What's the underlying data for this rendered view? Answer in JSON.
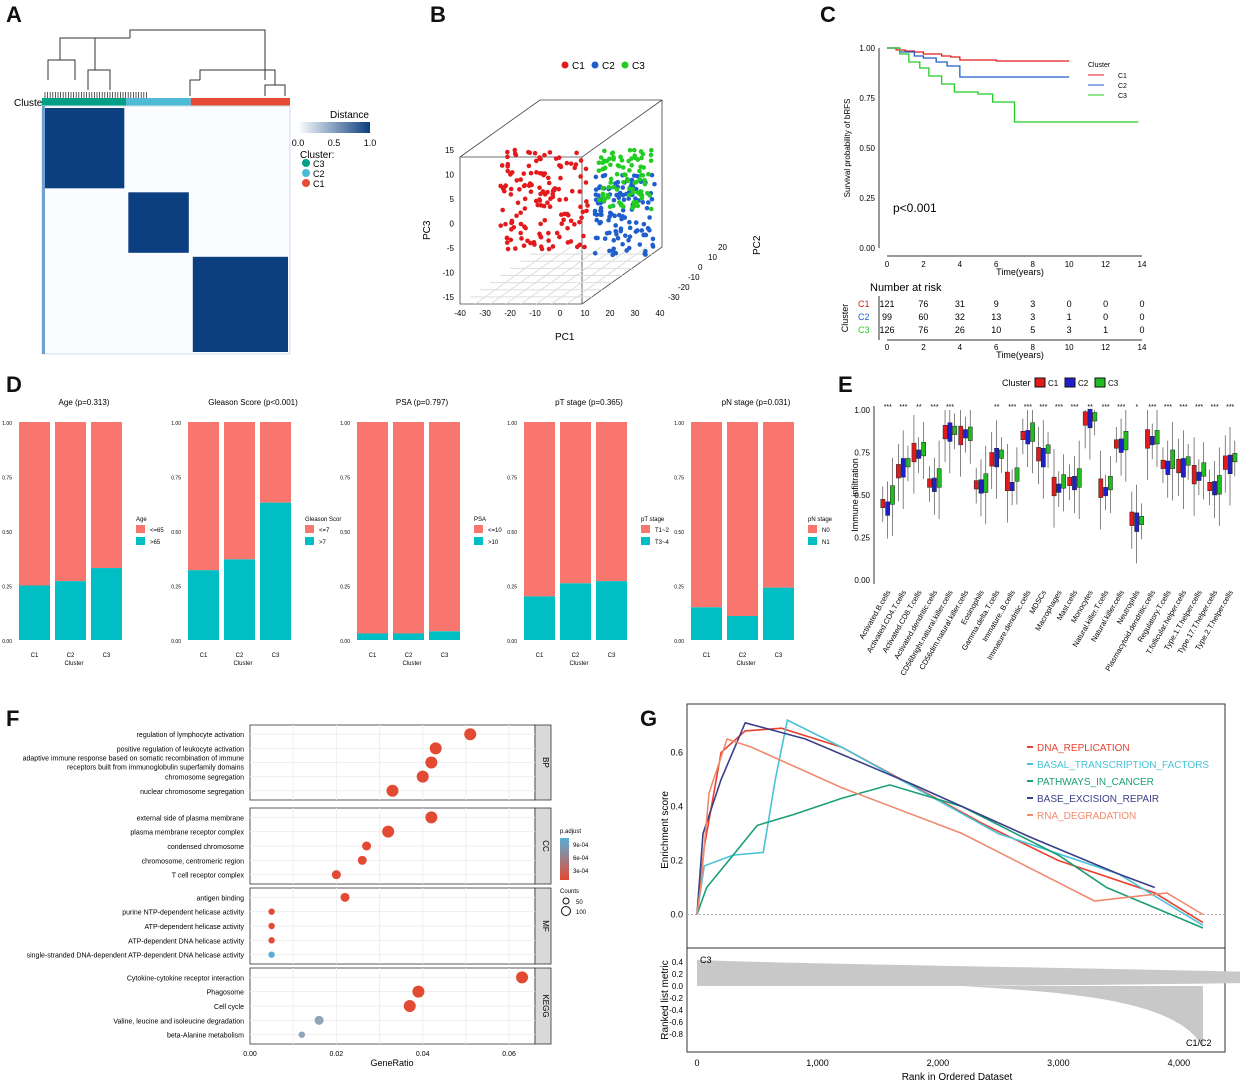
{
  "panels": {
    "A": "A",
    "B": "B",
    "C": "C",
    "D": "D",
    "E": "E",
    "F": "F",
    "G": "G"
  },
  "colors": {
    "C1": "#e64b35",
    "C2": "#4dbbd5",
    "C3": "#00a087",
    "red": "#e31a1c",
    "blue": "#1f5ecc",
    "green": "#22cc22",
    "navy": "#08306b"
  },
  "chart_data": [
    {
      "id": "A",
      "type": "heatmap",
      "row_label": "Cluster",
      "legend": {
        "title": "Distance",
        "ticks": [
          "0.0",
          "0.5",
          "1.0"
        ],
        "cluster_title": "Cluster:",
        "clusters": [
          "C3",
          "C2",
          "C1"
        ]
      },
      "blocks": [
        {
          "cluster": "C3",
          "fraction": 0.34
        },
        {
          "cluster": "C2",
          "fraction": 0.26
        },
        {
          "cluster": "C1",
          "fraction": 0.4
        }
      ]
    },
    {
      "id": "B",
      "type": "scatter",
      "legend": [
        "C1",
        "C2",
        "C3"
      ],
      "xlabel": "PC1",
      "ylabel": "PC3",
      "zlabel": "PC2",
      "xticks": [
        "-40",
        "-30",
        "-20",
        "-10",
        "0",
        "10",
        "20",
        "30",
        "40"
      ],
      "yticks": [
        "-15",
        "-10",
        "-5",
        "0",
        "5",
        "10",
        "15"
      ],
      "zticks": [
        "-30",
        "-20",
        "-10",
        "0",
        "10",
        "20"
      ]
    },
    {
      "id": "C",
      "type": "line",
      "title": "",
      "ylabel": "Survival probability of bRFS",
      "xlabel": "Time(years)",
      "xticks": [
        "0",
        "2",
        "4",
        "6",
        "8",
        "10",
        "12",
        "14"
      ],
      "yticks": [
        "0.00",
        "0.25",
        "0.50",
        "0.75",
        "1.00"
      ],
      "pvalue": "p<0.001",
      "legend_title": "Cluster",
      "series": [
        {
          "name": "C1",
          "x": [
            0,
            0.5,
            1,
            1.5,
            2,
            3,
            3.5,
            4,
            5,
            6,
            7,
            8,
            9,
            10
          ],
          "y": [
            1.0,
            0.99,
            0.985,
            0.98,
            0.97,
            0.96,
            0.955,
            0.94,
            0.94,
            0.935,
            0.935,
            0.935,
            0.935,
            0.935
          ]
        },
        {
          "name": "C2",
          "x": [
            0,
            0.7,
            1.5,
            2,
            2.7,
            3.3,
            4,
            5,
            6,
            7,
            8,
            9,
            10
          ],
          "y": [
            1.0,
            0.98,
            0.96,
            0.95,
            0.93,
            0.91,
            0.855,
            0.855,
            0.855,
            0.855,
            0.855,
            0.855,
            0.855
          ]
        },
        {
          "name": "C3",
          "x": [
            0,
            0.7,
            1.2,
            1.8,
            2.3,
            3,
            3.7,
            5,
            5.8,
            7,
            8,
            10,
            12,
            13.8
          ],
          "y": [
            1.0,
            0.97,
            0.93,
            0.9,
            0.86,
            0.82,
            0.78,
            0.77,
            0.73,
            0.63,
            0.63,
            0.63,
            0.63,
            0.63
          ]
        }
      ],
      "risk_table": {
        "title": "Number at risk",
        "ylabel": "Cluster",
        "xlabel": "Time(years)",
        "rows": [
          {
            "name": "C1",
            "values": [
              "121",
              "76",
              "31",
              "9",
              "3",
              "0",
              "0",
              "0"
            ]
          },
          {
            "name": "C2",
            "values": [
              "99",
              "60",
              "32",
              "13",
              "3",
              "1",
              "0",
              "0"
            ]
          },
          {
            "name": "C3",
            "values": [
              "126",
              "76",
              "26",
              "10",
              "5",
              "3",
              "1",
              "0"
            ]
          }
        ]
      }
    },
    {
      "id": "D",
      "type": "bar",
      "stacked": true,
      "categories": [
        "C1",
        "C2",
        "C3"
      ],
      "xlabel": "Cluster",
      "yticks": [
        "0.00",
        "0.25",
        "0.50",
        "0.75",
        "1.00"
      ],
      "plots": [
        {
          "title": "Age (p=0.313)",
          "legend_title": "Age",
          "labels": [
            "<=65",
            ">65"
          ],
          "bottom": [
            0.25,
            0.27,
            0.33
          ]
        },
        {
          "title": "Gleason Score (p<0.001)",
          "legend_title": "Gleason Scor",
          "labels": [
            "<=7",
            ">7"
          ],
          "bottom": [
            0.32,
            0.37,
            0.63
          ]
        },
        {
          "title": "PSA (p=0.797)",
          "legend_title": "PSA",
          "labels": [
            "<=10",
            ">10"
          ],
          "bottom": [
            0.03,
            0.03,
            0.04
          ]
        },
        {
          "title": "pT stage (p=0.365)",
          "legend_title": "pT stage",
          "labels": [
            "T1~2",
            "T3~4"
          ],
          "bottom": [
            0.2,
            0.26,
            0.27
          ]
        },
        {
          "title": "pN stage (p=0.031)",
          "legend_title": "pN stage",
          "labels": [
            "N0",
            "N1"
          ],
          "bottom": [
            0.15,
            0.11,
            0.24
          ]
        }
      ]
    },
    {
      "id": "E",
      "type": "box",
      "ylabel": "Immune infiltration",
      "legend_title": "Cluster",
      "legend": [
        "C1",
        "C2",
        "C3"
      ],
      "yticks": [
        "0.00",
        "0.25",
        "0.50",
        "0.75",
        "1.00"
      ],
      "cells": [
        {
          "name": "Activated.B.cells",
          "sig": "***",
          "med": [
            0.45,
            0.42,
            0.5
          ]
        },
        {
          "name": "Activated.CD4.T.cells",
          "sig": "***",
          "med": [
            0.64,
            0.66,
            0.69
          ]
        },
        {
          "name": "Activated.CD8.T.cells",
          "sig": "**",
          "med": [
            0.75,
            0.74,
            0.77
          ]
        },
        {
          "name": "Activated.dendritic.cells",
          "sig": "***",
          "med": [
            0.57,
            0.56,
            0.6
          ]
        },
        {
          "name": "CD56bright.natural.killer.cells",
          "sig": "***",
          "med": [
            0.87,
            0.87,
            0.88
          ]
        },
        {
          "name": "CD56dim.natural.killer.cells",
          "sig": "",
          "med": [
            0.85,
            0.86,
            0.86
          ]
        },
        {
          "name": "Eosinophils",
          "sig": "",
          "med": [
            0.56,
            0.55,
            0.57
          ]
        },
        {
          "name": "Gamma.delta.T.cells",
          "sig": "**",
          "med": [
            0.71,
            0.72,
            0.74
          ]
        },
        {
          "name": "Immature..B.cells",
          "sig": "***",
          "med": [
            0.58,
            0.55,
            0.62
          ]
        },
        {
          "name": "Immature.dendritic.cells",
          "sig": "***",
          "med": [
            0.85,
            0.84,
            0.87
          ]
        },
        {
          "name": "MDSCs",
          "sig": "***",
          "med": [
            0.74,
            0.72,
            0.77
          ]
        },
        {
          "name": "Macrophages",
          "sig": "***",
          "med": [
            0.55,
            0.54,
            0.58
          ]
        },
        {
          "name": "Mast.cells",
          "sig": "***",
          "med": [
            0.58,
            0.57,
            0.6
          ]
        },
        {
          "name": "Monocytes",
          "sig": "**",
          "med": [
            0.95,
            0.95,
            0.96
          ]
        },
        {
          "name": "Natural.killer.T.cells",
          "sig": "***",
          "med": [
            0.54,
            0.52,
            0.57
          ]
        },
        {
          "name": "Natural.killer.cells",
          "sig": "***",
          "med": [
            0.8,
            0.79,
            0.82
          ]
        },
        {
          "name": "Neutrophils",
          "sig": "*",
          "med": [
            0.36,
            0.34,
            0.35
          ]
        },
        {
          "name": "Plasmacytoid.dendritic.cells",
          "sig": "***",
          "med": [
            0.83,
            0.82,
            0.84
          ]
        },
        {
          "name": "Regulatory.T.cells",
          "sig": "***",
          "med": [
            0.68,
            0.66,
            0.71
          ]
        },
        {
          "name": "T.follicular.helper.cells",
          "sig": "***",
          "med": [
            0.67,
            0.66,
            0.7
          ]
        },
        {
          "name": "Type.1.T.helper.cells",
          "sig": "***",
          "med": [
            0.62,
            0.61,
            0.65
          ]
        },
        {
          "name": "Type.17.T.helper.cells",
          "sig": "***",
          "med": [
            0.55,
            0.54,
            0.56
          ]
        },
        {
          "name": "Type.2.T.helper.cells",
          "sig": "***",
          "med": [
            0.69,
            0.68,
            0.72
          ]
        }
      ]
    },
    {
      "id": "F",
      "type": "scatter",
      "xlabel": "GeneRatio",
      "xticks": [
        "0.00",
        "0.02",
        "0.04",
        "0.06"
      ],
      "xlim": [
        0,
        0.066
      ],
      "color_legend": {
        "title": "p.adjust",
        "ticks": [
          "9e-04",
          "6e-04",
          "3e-04"
        ]
      },
      "size_legend": {
        "title": "Counts",
        "ticks": [
          "50",
          "100"
        ]
      },
      "groups": [
        {
          "name": "BP",
          "terms": [
            {
              "label": "regulation of lymphocyte activation",
              "x": 0.051,
              "p": 0.0001
            },
            {
              "label": "positive regulation of leukocyte activation",
              "x": 0.043,
              "p": 0.0001
            },
            {
              "label": "adaptive immune response based on somatic recombination of immune",
              "label2": "receptors built from immunoglobulin superfamily domains",
              "x": 0.042,
              "p": 0.0001
            },
            {
              "label": "chromosome segregation",
              "x": 0.04,
              "p": 0.0001
            },
            {
              "label": "nuclear chromosome segregation",
              "x": 0.033,
              "p": 0.0001
            }
          ]
        },
        {
          "name": "CC",
          "terms": [
            {
              "label": "external side of plasma membrane",
              "x": 0.042,
              "p": 0.0001
            },
            {
              "label": "plasma membrane receptor complex",
              "x": 0.032,
              "p": 0.0001
            },
            {
              "label": "condensed chromosome",
              "x": 0.027,
              "p": 0.0001
            },
            {
              "label": "chromosome, centromeric region",
              "x": 0.026,
              "p": 0.0001
            },
            {
              "label": "T cell receptor complex",
              "x": 0.02,
              "p": 0.0001
            }
          ]
        },
        {
          "name": "MF",
          "terms": [
            {
              "label": "antigen binding",
              "x": 0.022,
              "p": 0.0001
            },
            {
              "label": "purine NTP-dependent helicase activity",
              "x": 0.005,
              "p": 0.0002
            },
            {
              "label": "ATP-dependent helicase activity",
              "x": 0.005,
              "p": 0.0002
            },
            {
              "label": "ATP-dependent DNA helicase activity",
              "x": 0.005,
              "p": 0.0002
            },
            {
              "label": "single-stranded DNA-dependent ATP-dependent DNA helicase activity",
              "x": 0.005,
              "p": 0.00095
            }
          ]
        },
        {
          "name": "KEGG",
          "terms": [
            {
              "label": "Cytokine-cytokine receptor interaction",
              "x": 0.063,
              "p": 0.0001
            },
            {
              "label": "Phagosome",
              "x": 0.039,
              "p": 0.0001
            },
            {
              "label": "Cell cycle",
              "x": 0.037,
              "p": 0.0001
            },
            {
              "label": "Valine, leucine and isoleucine degradation",
              "x": 0.016,
              "p": 0.0007
            },
            {
              "label": "beta-Alanine metabolism",
              "x": 0.012,
              "p": 0.0008
            }
          ]
        }
      ]
    },
    {
      "id": "G",
      "type": "line",
      "ylabel": "Enrichment score",
      "ylabel2": "Ranked list metric",
      "xlabel": "Rank in Ordered Dataset",
      "xticks": [
        "0",
        "1,000",
        "2,000",
        "3,000",
        "4,000"
      ],
      "yticks": [
        "0.0",
        "0.2",
        "0.4",
        "0.6"
      ],
      "yticks2": [
        "0.4",
        "0.2",
        "0.0",
        "-0.2",
        "-0.4",
        "-0.6",
        "-0.8"
      ],
      "top_label": "C3",
      "bottom_label": "C1/C2",
      "series": [
        {
          "name": "DNA_REPLICATION",
          "color": "#e8412f",
          "x": [
            0,
            60,
            200,
            400,
            700,
            1200,
            2400,
            3000,
            3800,
            4200
          ],
          "y": [
            0,
            0.25,
            0.6,
            0.68,
            0.69,
            0.62,
            0.33,
            0.2,
            0.08,
            -0.03
          ]
        },
        {
          "name": "BASAL_TRANSCRIPTION_FACTORS",
          "color": "#4ac3d8",
          "x": [
            0,
            60,
            300,
            550,
            650,
            750,
            1200,
            2500,
            3500,
            4200
          ],
          "y": [
            0,
            0.18,
            0.22,
            0.23,
            0.5,
            0.72,
            0.62,
            0.3,
            0.15,
            -0.04
          ]
        },
        {
          "name": "PATHWAYS_IN_CANCER",
          "color": "#1b9e77",
          "x": [
            0,
            80,
            300,
            500,
            800,
            1200,
            1600,
            2200,
            3000,
            3400,
            4200
          ],
          "y": [
            0,
            0.1,
            0.22,
            0.33,
            0.37,
            0.43,
            0.48,
            0.4,
            0.22,
            0.1,
            -0.05
          ]
        },
        {
          "name": "BASE_EXCISION_REPAIR",
          "color": "#3a3f88",
          "x": [
            0,
            50,
            200,
            400,
            900,
            1800,
            2800,
            3500,
            3800
          ],
          "y": [
            0,
            0.3,
            0.5,
            0.71,
            0.65,
            0.48,
            0.28,
            0.15,
            0.1
          ]
        },
        {
          "name": "RNA_DEGRADATION",
          "color": "#f08a6e",
          "x": [
            0,
            30,
            100,
            250,
            450,
            1200,
            2200,
            3300,
            3900,
            4200
          ],
          "y": [
            0,
            0.1,
            0.45,
            0.65,
            0.62,
            0.47,
            0.3,
            0.05,
            0.08,
            0.0
          ]
        }
      ]
    }
  ]
}
